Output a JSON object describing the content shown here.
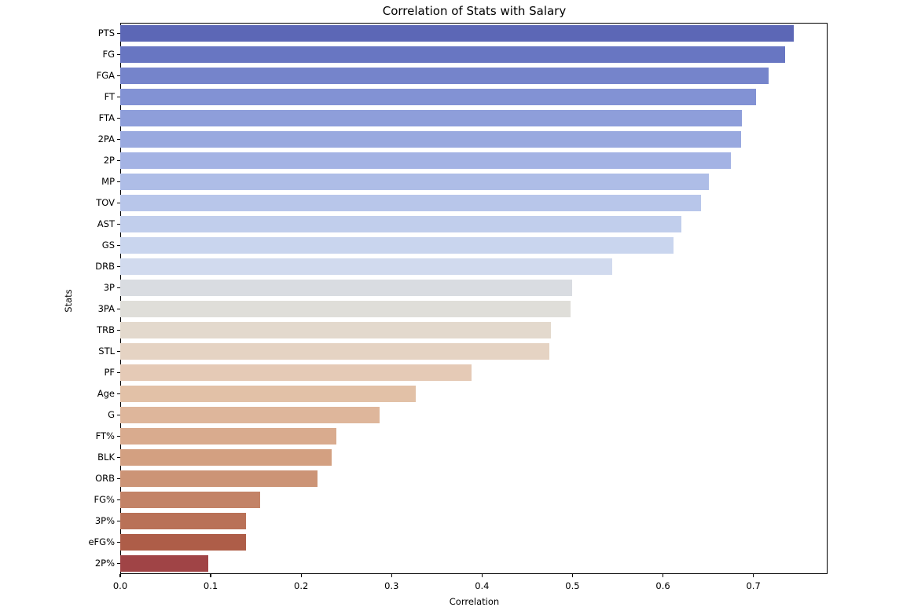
{
  "chart_data": {
    "type": "bar",
    "orientation": "horizontal",
    "title": "Correlation of Stats with Salary",
    "xlabel": "Correlation",
    "ylabel": "Stats",
    "xlim": [
      0.0,
      0.782
    ],
    "xticks": [
      0.0,
      0.1,
      0.2,
      0.3,
      0.4,
      0.5,
      0.6,
      0.7
    ],
    "xtick_labels": [
      "0.0",
      "0.1",
      "0.2",
      "0.3",
      "0.4",
      "0.5",
      "0.6",
      "0.7"
    ],
    "grid": false,
    "legend_position": "none",
    "palette_name": "coolwarm",
    "categories": [
      "PTS",
      "FG",
      "FGA",
      "FT",
      "FTA",
      "2PA",
      "2P",
      "MP",
      "TOV",
      "AST",
      "GS",
      "DRB",
      "3P",
      "3PA",
      "TRB",
      "STL",
      "PF",
      "Age",
      "G",
      "FT%",
      "BLK",
      "ORB",
      "FG%",
      "3P%",
      "eFG%",
      "2P%"
    ],
    "values": [
      0.745,
      0.735,
      0.717,
      0.703,
      0.687,
      0.686,
      0.675,
      0.651,
      0.642,
      0.62,
      0.612,
      0.544,
      0.5,
      0.498,
      0.476,
      0.474,
      0.388,
      0.327,
      0.287,
      0.239,
      0.234,
      0.218,
      0.155,
      0.139,
      0.139,
      0.097
    ],
    "bar_colors": [
      "#5c67b6",
      "#6876c2",
      "#7584cb",
      "#8292d4",
      "#8e9eda",
      "#99a9df",
      "#a4b3e4",
      "#aebde7",
      "#b8c6ea",
      "#c1ceec",
      "#c9d5ee",
      "#d1daee",
      "#d9dce1",
      "#dfded9",
      "#e3d9cd",
      "#e5d3c3",
      "#e5cab6",
      "#e2c1a7",
      "#deb69b",
      "#d9ab8e",
      "#d3a081",
      "#cc9476",
      "#c38367",
      "#b97157",
      "#ae5d48",
      "#a04446"
    ],
    "spine_color": "#000000",
    "background_color": "#ffffff"
  }
}
